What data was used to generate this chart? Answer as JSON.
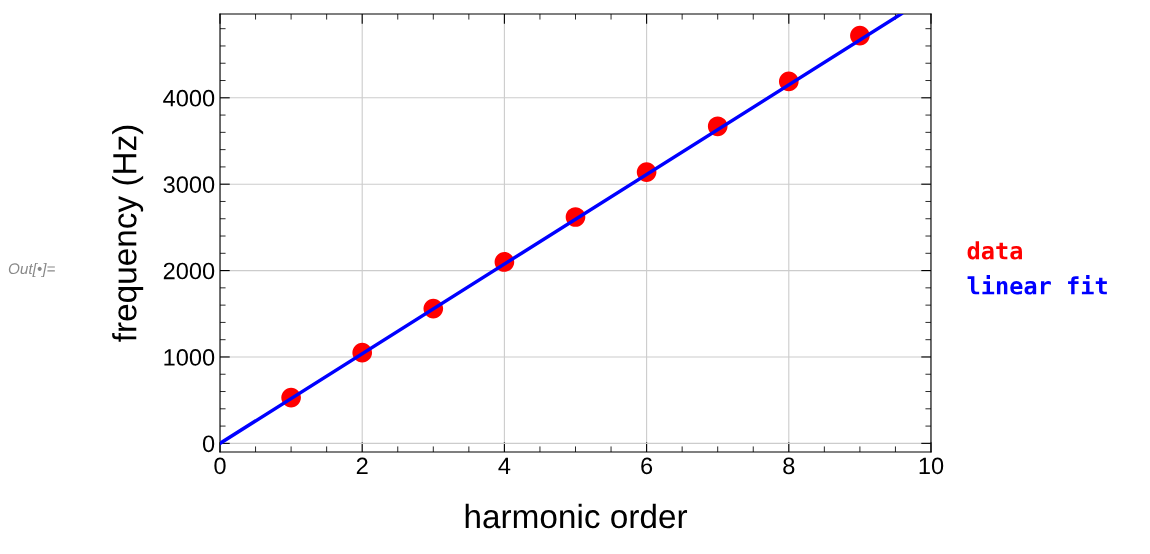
{
  "chart_data": {
    "type": "scatter",
    "xlabel": "harmonic order",
    "ylabel": "frequency (Hz)",
    "x": [
      1,
      2,
      3,
      4,
      5,
      6,
      7,
      8,
      9
    ],
    "series": [
      {
        "name": "data",
        "color": "#ff0000",
        "marker": "circle",
        "values": [
          530,
          1050,
          1560,
          2100,
          2620,
          3140,
          3670,
          4190,
          4720
        ]
      },
      {
        "name": "linear fit",
        "type": "line",
        "marker": "none",
        "color": "#0000ff",
        "x": [
          0,
          9.58
        ],
        "values": [
          0,
          4970
        ]
      }
    ],
    "xlim": [
      0,
      10
    ],
    "xticks": [
      0,
      2,
      4,
      6,
      8,
      10
    ],
    "ylim": [
      -100,
      4970
    ],
    "yticks": [
      0,
      1000,
      2000,
      3000,
      4000
    ],
    "grid": true,
    "legend": "right",
    "annotations": [
      "Out[•]="
    ]
  }
}
